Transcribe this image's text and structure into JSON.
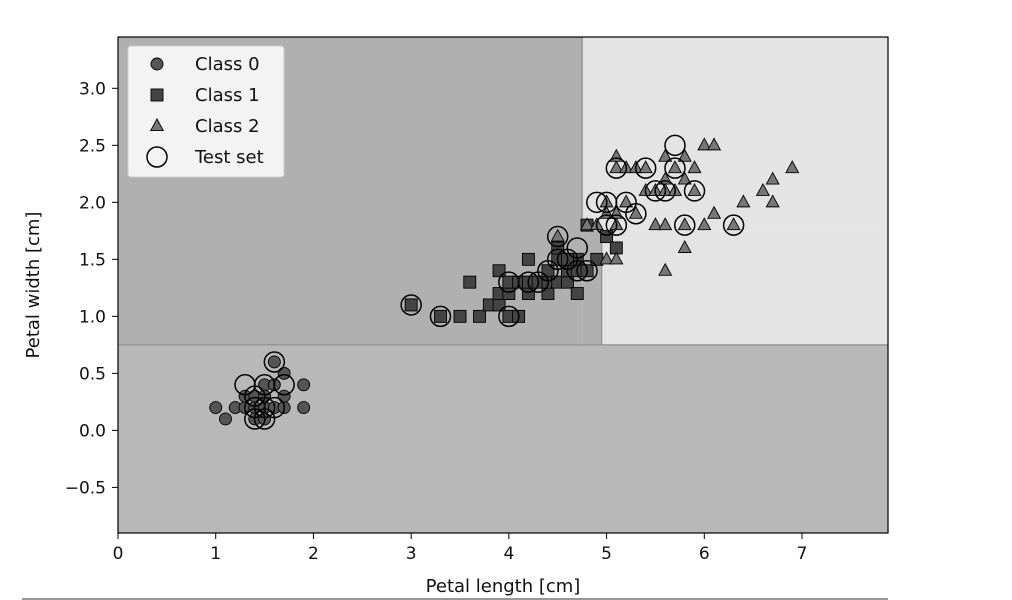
{
  "chart_data": {
    "type": "scatter",
    "xlabel": "Petal length [cm]",
    "ylabel": "Petal width [cm]",
    "xlim": [
      0,
      7.88
    ],
    "ylim": [
      -0.9,
      3.45
    ],
    "xticks": [
      "0",
      "1",
      "2",
      "3",
      "4",
      "5",
      "6",
      "7"
    ],
    "yticks": [
      "−0.5",
      "0.0",
      "0.5",
      "1.0",
      "1.5",
      "2.0",
      "2.5",
      "3.0"
    ],
    "grid": false,
    "legend_position": "top-left",
    "legend": [
      {
        "label": "Class 0",
        "marker": "circle"
      },
      {
        "label": "Class 1",
        "marker": "square"
      },
      {
        "label": "Class 2",
        "marker": "triangle"
      },
      {
        "label": "Test set",
        "marker": "open-circle"
      }
    ],
    "decision_regions": [
      {
        "class": 0,
        "x_range": [
          0,
          7.88
        ],
        "y_range": [
          -0.9,
          0.75
        ],
        "color": "#b8b8b8"
      },
      {
        "class": 1,
        "x_range": [
          0,
          4.75
        ],
        "y_range": [
          0.75,
          3.45
        ],
        "color": "#b0b0b0"
      },
      {
        "class": 1,
        "x_range": [
          4.75,
          4.95
        ],
        "y_range": [
          0.75,
          1.75
        ],
        "color": "#b0b0b0"
      },
      {
        "class": 2,
        "x_range": [
          4.75,
          7.88
        ],
        "y_range": [
          1.75,
          3.45
        ],
        "color": "#e4e4e4"
      },
      {
        "class": 2,
        "x_range": [
          4.95,
          7.88
        ],
        "y_range": [
          0.75,
          1.75
        ],
        "color": "#e4e4e4"
      }
    ],
    "series": [
      {
        "name": "Class 0",
        "marker": "circle",
        "color": "#555555",
        "points": [
          [
            1.0,
            0.2
          ],
          [
            1.1,
            0.1
          ],
          [
            1.2,
            0.2
          ],
          [
            1.3,
            0.2
          ],
          [
            1.3,
            0.3
          ],
          [
            1.4,
            0.2
          ],
          [
            1.4,
            0.1
          ],
          [
            1.4,
            0.3
          ],
          [
            1.5,
            0.2
          ],
          [
            1.5,
            0.1
          ],
          [
            1.5,
            0.4
          ],
          [
            1.6,
            0.2
          ],
          [
            1.6,
            0.6
          ],
          [
            1.7,
            0.2
          ],
          [
            1.7,
            0.5
          ],
          [
            1.7,
            0.3
          ],
          [
            1.9,
            0.4
          ],
          [
            1.9,
            0.2
          ],
          [
            1.6,
            0.4
          ],
          [
            1.5,
            0.3
          ]
        ]
      },
      {
        "name": "Class 1",
        "marker": "square",
        "color": "#444444",
        "points": [
          [
            3.0,
            1.1
          ],
          [
            3.3,
            1.0
          ],
          [
            3.5,
            1.0
          ],
          [
            3.6,
            1.3
          ],
          [
            3.7,
            1.0
          ],
          [
            3.8,
            1.1
          ],
          [
            3.9,
            1.1
          ],
          [
            3.9,
            1.2
          ],
          [
            3.9,
            1.4
          ],
          [
            4.0,
            1.0
          ],
          [
            4.0,
            1.2
          ],
          [
            4.0,
            1.3
          ],
          [
            4.1,
            1.0
          ],
          [
            4.1,
            1.3
          ],
          [
            4.2,
            1.2
          ],
          [
            4.2,
            1.3
          ],
          [
            4.2,
            1.5
          ],
          [
            4.3,
            1.3
          ],
          [
            4.4,
            1.2
          ],
          [
            4.4,
            1.3
          ],
          [
            4.4,
            1.4
          ],
          [
            4.5,
            1.3
          ],
          [
            4.5,
            1.5
          ],
          [
            4.6,
            1.3
          ],
          [
            4.6,
            1.4
          ],
          [
            4.7,
            1.2
          ],
          [
            4.7,
            1.4
          ],
          [
            4.7,
            1.5
          ],
          [
            4.8,
            1.4
          ],
          [
            4.8,
            1.8
          ],
          [
            4.9,
            1.5
          ],
          [
            5.0,
            1.7
          ],
          [
            5.1,
            1.6
          ],
          [
            4.5,
            1.6
          ],
          [
            4.6,
            1.5
          ]
        ]
      },
      {
        "name": "Class 2",
        "marker": "triangle",
        "color": "#777777",
        "points": [
          [
            4.5,
            1.7
          ],
          [
            4.8,
            1.8
          ],
          [
            4.9,
            1.8
          ],
          [
            5.0,
            1.5
          ],
          [
            5.0,
            1.9
          ],
          [
            5.0,
            2.0
          ],
          [
            5.1,
            1.5
          ],
          [
            5.1,
            1.8
          ],
          [
            5.1,
            1.9
          ],
          [
            5.1,
            2.3
          ],
          [
            5.1,
            2.4
          ],
          [
            5.2,
            2.0
          ],
          [
            5.2,
            2.3
          ],
          [
            5.3,
            1.9
          ],
          [
            5.3,
            2.3
          ],
          [
            5.4,
            2.1
          ],
          [
            5.5,
            1.8
          ],
          [
            5.5,
            2.1
          ],
          [
            5.6,
            1.4
          ],
          [
            5.6,
            1.8
          ],
          [
            5.6,
            2.1
          ],
          [
            5.6,
            2.2
          ],
          [
            5.6,
            2.4
          ],
          [
            5.7,
            2.1
          ],
          [
            5.7,
            2.3
          ],
          [
            5.8,
            1.8
          ],
          [
            5.8,
            2.2
          ],
          [
            5.8,
            2.4
          ],
          [
            5.9,
            2.1
          ],
          [
            5.9,
            2.3
          ],
          [
            6.0,
            1.8
          ],
          [
            6.0,
            2.5
          ],
          [
            6.1,
            1.9
          ],
          [
            6.1,
            2.5
          ],
          [
            6.3,
            1.8
          ],
          [
            6.4,
            2.0
          ],
          [
            6.6,
            2.1
          ],
          [
            6.7,
            2.0
          ],
          [
            6.7,
            2.2
          ],
          [
            6.9,
            2.3
          ],
          [
            5.8,
            1.6
          ],
          [
            5.4,
            2.3
          ]
        ]
      },
      {
        "name": "Test set",
        "marker": "open-circle",
        "color": "#000000",
        "points": [
          [
            1.3,
            0.4
          ],
          [
            1.4,
            0.2
          ],
          [
            1.4,
            0.1
          ],
          [
            1.5,
            0.1
          ],
          [
            1.5,
            0.4
          ],
          [
            1.6,
            0.6
          ],
          [
            1.7,
            0.4
          ],
          [
            1.4,
            0.3
          ],
          [
            1.5,
            0.2
          ],
          [
            1.6,
            0.2
          ],
          [
            3.0,
            1.1
          ],
          [
            3.3,
            1.0
          ],
          [
            4.0,
            1.0
          ],
          [
            4.0,
            1.3
          ],
          [
            4.2,
            1.3
          ],
          [
            4.3,
            1.3
          ],
          [
            4.4,
            1.4
          ],
          [
            4.5,
            1.5
          ],
          [
            4.5,
            1.7
          ],
          [
            4.6,
            1.5
          ],
          [
            4.7,
            1.6
          ],
          [
            4.7,
            1.4
          ],
          [
            4.8,
            1.4
          ],
          [
            4.9,
            2.0
          ],
          [
            5.0,
            1.8
          ],
          [
            5.0,
            2.0
          ],
          [
            5.1,
            1.8
          ],
          [
            5.1,
            2.3
          ],
          [
            5.2,
            2.0
          ],
          [
            5.3,
            1.9
          ],
          [
            5.4,
            2.3
          ],
          [
            5.5,
            2.1
          ],
          [
            5.6,
            2.1
          ],
          [
            5.7,
            2.5
          ],
          [
            5.7,
            2.3
          ],
          [
            5.8,
            1.8
          ],
          [
            5.9,
            2.1
          ],
          [
            6.3,
            1.8
          ]
        ]
      }
    ]
  }
}
